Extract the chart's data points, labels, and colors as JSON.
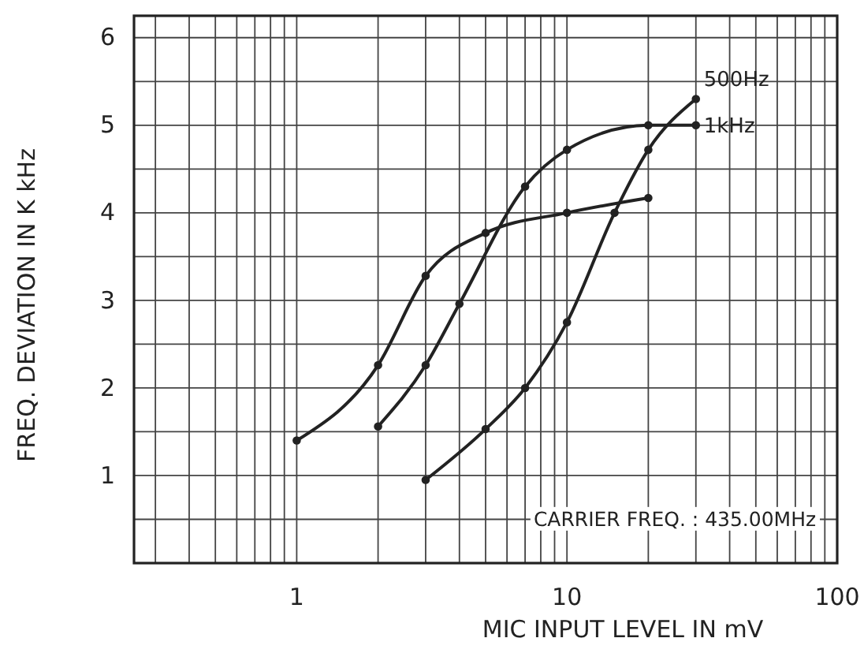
{
  "chart_data": {
    "type": "line",
    "xlabel": "MIC INPUT LEVEL IN mV",
    "ylabel": "FREQ. DEVIATION IN K kHz",
    "annotations": [
      "CARRIER FREQ. : 435.00MHz"
    ],
    "log": "x",
    "grid": true,
    "marker": "circle",
    "line_style": "solid",
    "legend": false,
    "xlim": [
      0.25,
      100
    ],
    "xticks": [
      {
        "value": 0.3,
        "label": null
      },
      {
        "value": 0.4,
        "label": null
      },
      {
        "value": 0.5,
        "label": null
      },
      {
        "value": 0.6,
        "label": null
      },
      {
        "value": 0.7,
        "label": null
      },
      {
        "value": 0.8,
        "label": null
      },
      {
        "value": 0.9,
        "label": null
      },
      1,
      {
        "value": 2,
        "label": null
      },
      {
        "value": 3,
        "label": null
      },
      {
        "value": 4,
        "label": null
      },
      {
        "value": 5,
        "label": null
      },
      {
        "value": 6,
        "label": null
      },
      {
        "value": 7,
        "label": null
      },
      {
        "value": 8,
        "label": null
      },
      {
        "value": 9,
        "label": null
      },
      10,
      {
        "value": 20,
        "label": null
      },
      {
        "value": 30,
        "label": null
      },
      {
        "value": 40,
        "label": null
      },
      {
        "value": 50,
        "label": null
      },
      {
        "value": 60,
        "label": null
      },
      {
        "value": 70,
        "label": null
      },
      {
        "value": 80,
        "label": null
      },
      {
        "value": 90,
        "label": null
      },
      100
    ],
    "ylim": [
      0,
      6.25
    ],
    "yticks": [
      {
        "value": 0.5,
        "label": null
      },
      1,
      {
        "value": 1.5,
        "label": null
      },
      2,
      {
        "value": 2.5,
        "label": null
      },
      3,
      {
        "value": 3.5,
        "label": null
      },
      4,
      {
        "value": 4.5,
        "label": null
      },
      5,
      {
        "value": 5.5,
        "label": null
      },
      6
    ],
    "series": [
      {
        "name": "500Hz",
        "color": "#222222",
        "x": [
          3,
          5,
          7,
          10,
          15,
          20,
          30
        ],
        "values": [
          0.95,
          1.53,
          2.0,
          2.75,
          4.0,
          4.72,
          5.3
        ]
      },
      {
        "name": "1kHz",
        "color": "#222222",
        "x": [
          2,
          3,
          4,
          7,
          10,
          20,
          30
        ],
        "values": [
          1.56,
          2.26,
          2.96,
          4.3,
          4.72,
          5.0,
          5.0
        ]
      },
      {
        "color": "#222222",
        "x": [
          1,
          2,
          3,
          5,
          10,
          20
        ],
        "values": [
          1.4,
          2.26,
          3.28,
          3.77,
          4.0,
          4.17
        ]
      }
    ]
  }
}
